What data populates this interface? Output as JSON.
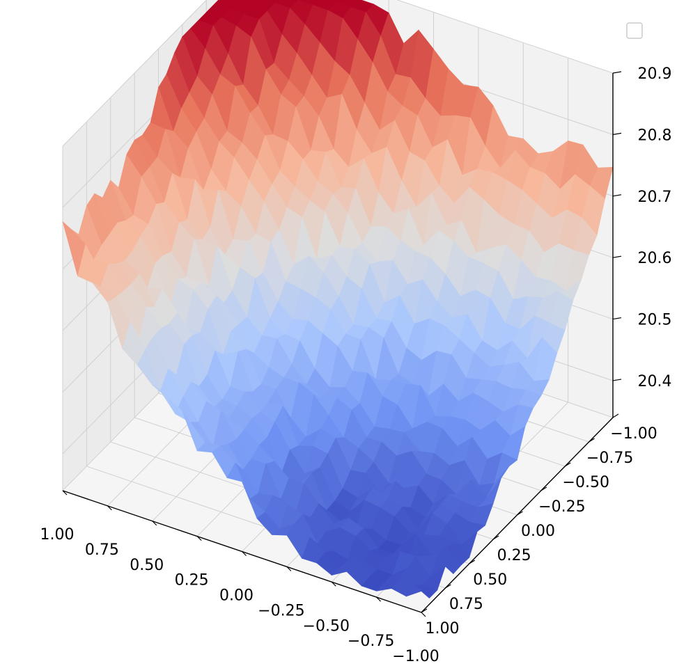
{
  "chart_data": {
    "type": "surface3d",
    "title": "",
    "xlabel": "",
    "ylabel": "",
    "zlabel": "",
    "colormap": "coolwarm",
    "colormap_stops": [
      "#3b4cc0",
      "#6f92f3",
      "#aac7fd",
      "#dddddd",
      "#f7b89c",
      "#e7745b",
      "#b40426"
    ],
    "x_ticks": [
      "1.00",
      "0.75",
      "0.50",
      "0.25",
      "0.00",
      "−0.25",
      "−0.50",
      "−0.75",
      "−1.00"
    ],
    "y_ticks": [
      "−1.00",
      "−0.75",
      "−0.50",
      "−0.25",
      "0.00",
      "0.25",
      "0.50",
      "0.75",
      "1.00"
    ],
    "z_ticks": [
      "20.4",
      "20.5",
      "20.6",
      "20.7",
      "20.8",
      "20.9"
    ],
    "xlim": [
      -1.0,
      1.0
    ],
    "ylim": [
      -1.0,
      1.0
    ],
    "zlim": [
      20.34,
      20.9
    ],
    "surface": {
      "description_of_shape": "Parabolic bowl z = c + a*(x^2 + y^2) with noise; lowest near x=-0.75,y=0.75",
      "z_min": 20.35,
      "z_max": 20.88,
      "grid_n": 25
    },
    "legend": {
      "placement": "top-right",
      "entries": []
    },
    "grid": true
  }
}
